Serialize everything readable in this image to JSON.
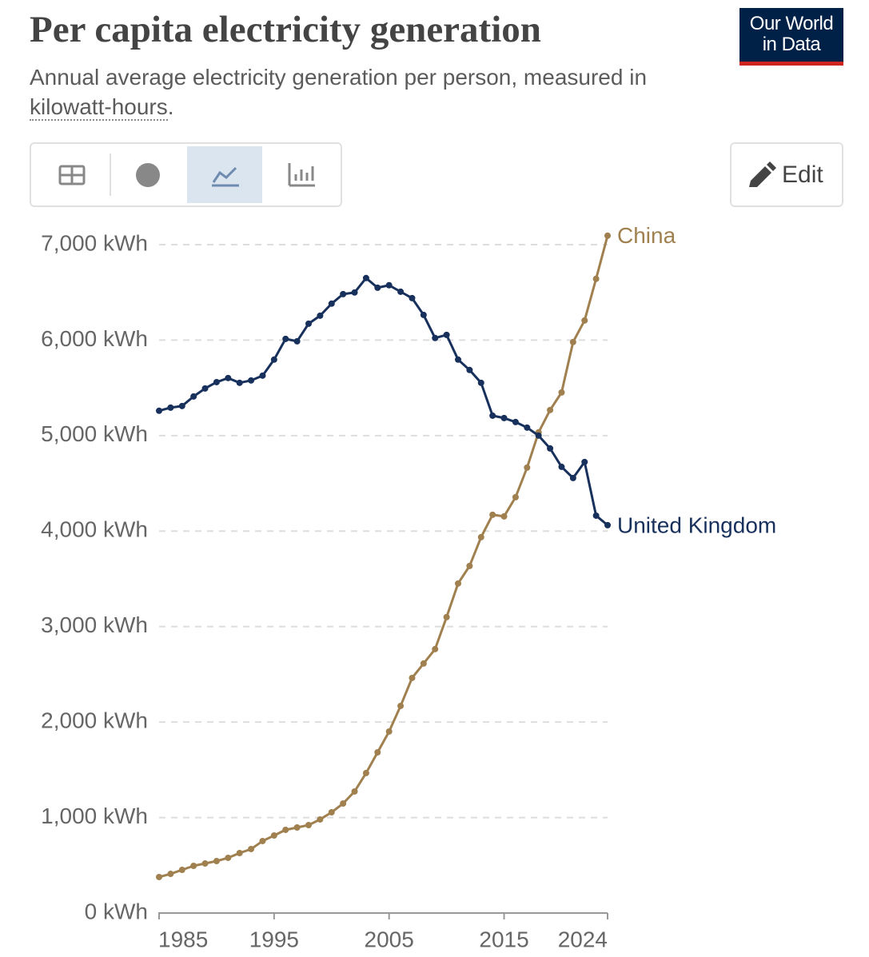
{
  "logo": [
    "Our World",
    "in Data"
  ],
  "edit_button": "Edit",
  "chart_data": {
    "type": "line",
    "title": "Per capita electricity generation",
    "subtitle": [
      "Annual average electricity generation per person, measured in",
      "kilowatt-hours",
      "."
    ],
    "x": [
      1985,
      1986,
      1987,
      1988,
      1989,
      1990,
      1991,
      1992,
      1993,
      1994,
      1995,
      1996,
      1997,
      1998,
      1999,
      2000,
      2001,
      2002,
      2003,
      2004,
      2005,
      2006,
      2007,
      2008,
      2009,
      2010,
      2011,
      2012,
      2013,
      2014,
      2015,
      2016,
      2017,
      2018,
      2019,
      2020,
      2021,
      2022,
      2023,
      2024
    ],
    "series": [
      {
        "name": "China",
        "color": "#a0804f",
        "values": [
          377,
          410,
          452,
          494,
          519,
          544,
          578,
          628,
          670,
          754,
          812,
          871,
          896,
          921,
          980,
          1055,
          1147,
          1273,
          1466,
          1683,
          1901,
          2169,
          2462,
          2613,
          2764,
          3099,
          3451,
          3635,
          3936,
          4171,
          4154,
          4355,
          4665,
          5034,
          5268,
          5452,
          5980,
          6206,
          6642,
          7094
        ]
      },
      {
        "name": "United Kingdom",
        "color": "#18305c",
        "values": [
          5260,
          5293,
          5310,
          5410,
          5494,
          5560,
          5603,
          5553,
          5578,
          5628,
          5796,
          6013,
          5988,
          6172,
          6256,
          6382,
          6482,
          6499,
          6650,
          6549,
          6575,
          6507,
          6440,
          6264,
          6022,
          6055,
          5796,
          5687,
          5553,
          5209,
          5184,
          5142,
          5084,
          5000,
          4866,
          4673,
          4556,
          4724,
          4162,
          4062
        ]
      }
    ],
    "xlim": [
      1985,
      2024
    ],
    "xticks": [
      1985,
      1995,
      2005,
      2015,
      2024
    ],
    "ylim": [
      0,
      7000
    ],
    "yticks": [
      {
        "value": 0,
        "label": "0 kWh"
      },
      {
        "value": 1000,
        "label": "1,000 kWh"
      },
      {
        "value": 2000,
        "label": "2,000 kWh"
      },
      {
        "value": 3000,
        "label": "3,000 kWh"
      },
      {
        "value": 4000,
        "label": "4,000 kWh"
      },
      {
        "value": 5000,
        "label": "5,000 kWh"
      },
      {
        "value": 6000,
        "label": "6,000 kWh"
      },
      {
        "value": 7000,
        "label": "7,000 kWh"
      }
    ],
    "grid": true
  }
}
